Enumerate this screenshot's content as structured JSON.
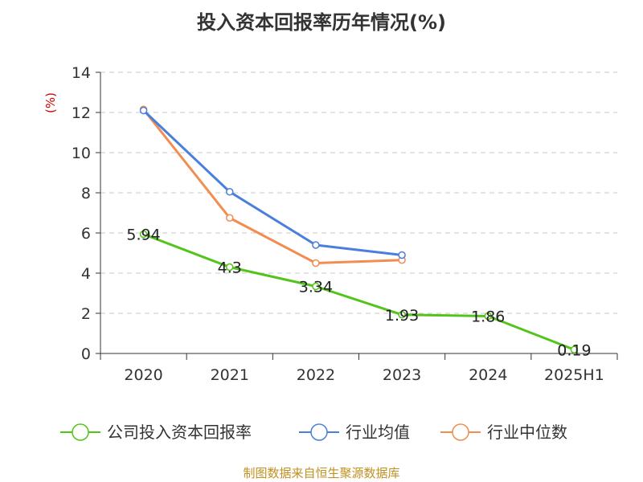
{
  "chart_data": {
    "type": "line",
    "title": "投入资本回报率历年情况(%)",
    "ylabel": "(%)",
    "xlabel": "",
    "categories": [
      "2020",
      "2021",
      "2022",
      "2023",
      "2024",
      "2025H1"
    ],
    "ylim": [
      0,
      14
    ],
    "yticks": [
      0,
      2,
      4,
      6,
      8,
      10,
      12,
      14
    ],
    "grid": true,
    "legend_position": "bottom",
    "series": [
      {
        "name": "公司投入资本回报率",
        "color": "#52c41a",
        "values": [
          5.94,
          4.3,
          3.34,
          1.93,
          1.86,
          0.19
        ],
        "labels": [
          "5.94",
          "4.3",
          "3.34",
          "1.93",
          "1.86",
          "0.19"
        ]
      },
      {
        "name": "行业均值",
        "color": "#4a7fdc",
        "values": [
          12.1,
          8.05,
          5.4,
          4.9,
          null,
          null
        ]
      },
      {
        "name": "行业中位数",
        "color": "#f28c50",
        "values": [
          12.15,
          6.75,
          4.5,
          4.65,
          null,
          null
        ]
      }
    ]
  },
  "source": "制图数据来自恒生聚源数据库"
}
